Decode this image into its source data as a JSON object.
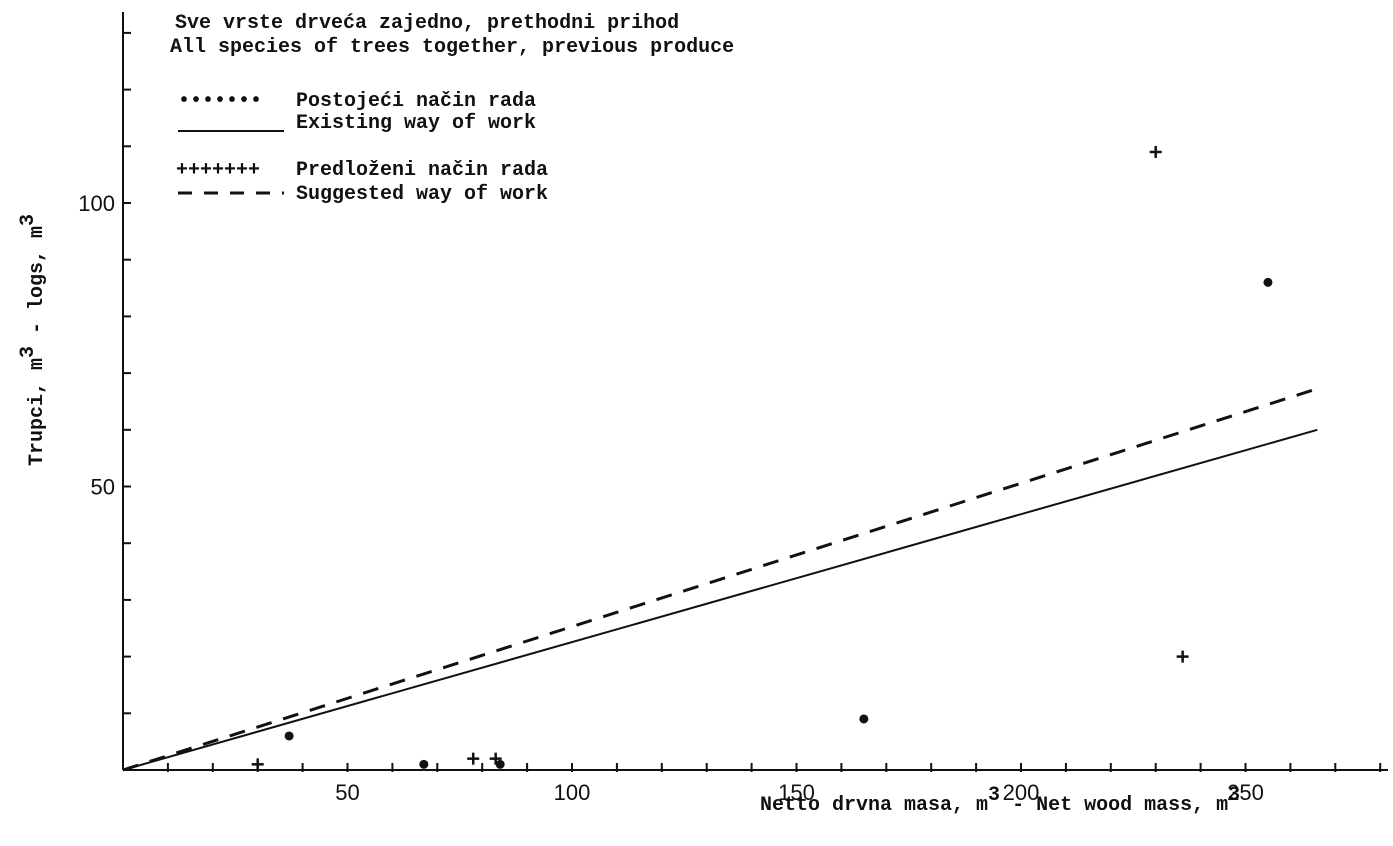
{
  "chart_data": {
    "type": "scatter",
    "title": "Sve vrste drveća zajedno, prethodni prihod",
    "subtitle": "All species of trees together, previous produce",
    "xlabel_main": "Netto drvna masa, m",
    "xlabel_sup1": "3",
    "xlabel_mid": " - Net wood mass, m",
    "xlabel_sup2": "3",
    "ylabel_main": "Trupci, m",
    "ylabel_sup1": "3",
    "ylabel_mid": " - logs, m",
    "ylabel_sup2": "3",
    "xlim": [
      0,
      285
    ],
    "ylim": [
      0,
      133
    ],
    "x_ticks": [
      50,
      100,
      150,
      200,
      250
    ],
    "y_ticks": [
      50,
      100
    ],
    "x_minor_step": 10,
    "y_minor_step": 10,
    "legend": [
      {
        "marker": "•••••••",
        "label1": "Postojeći način rada",
        "label2": "Existing way of work",
        "style": "solid"
      },
      {
        "marker": "+++++++",
        "label1": "Predloženi način rada",
        "label2": "Suggested way of work",
        "style": "dashed"
      }
    ],
    "series": [
      {
        "name": "Postojeći način rada / Existing way of work",
        "marker": "dot",
        "points": [
          [
            37,
            6
          ],
          [
            67,
            1
          ],
          [
            84,
            1
          ],
          [
            165,
            9
          ],
          [
            255,
            86
          ]
        ],
        "fit": {
          "x0": 0,
          "y0": 0,
          "x1": 266,
          "y1": 60,
          "style": "solid"
        }
      },
      {
        "name": "Predloženi način rada / Suggested way of work",
        "marker": "plus",
        "points": [
          [
            30,
            1
          ],
          [
            78,
            2
          ],
          [
            83,
            2
          ],
          [
            230,
            109
          ],
          [
            236,
            20
          ]
        ],
        "fit": {
          "x0": 0,
          "y0": 0,
          "x1": 265,
          "y1": 67,
          "style": "dashed"
        }
      }
    ],
    "grid": false,
    "legend_position": "top-left"
  }
}
